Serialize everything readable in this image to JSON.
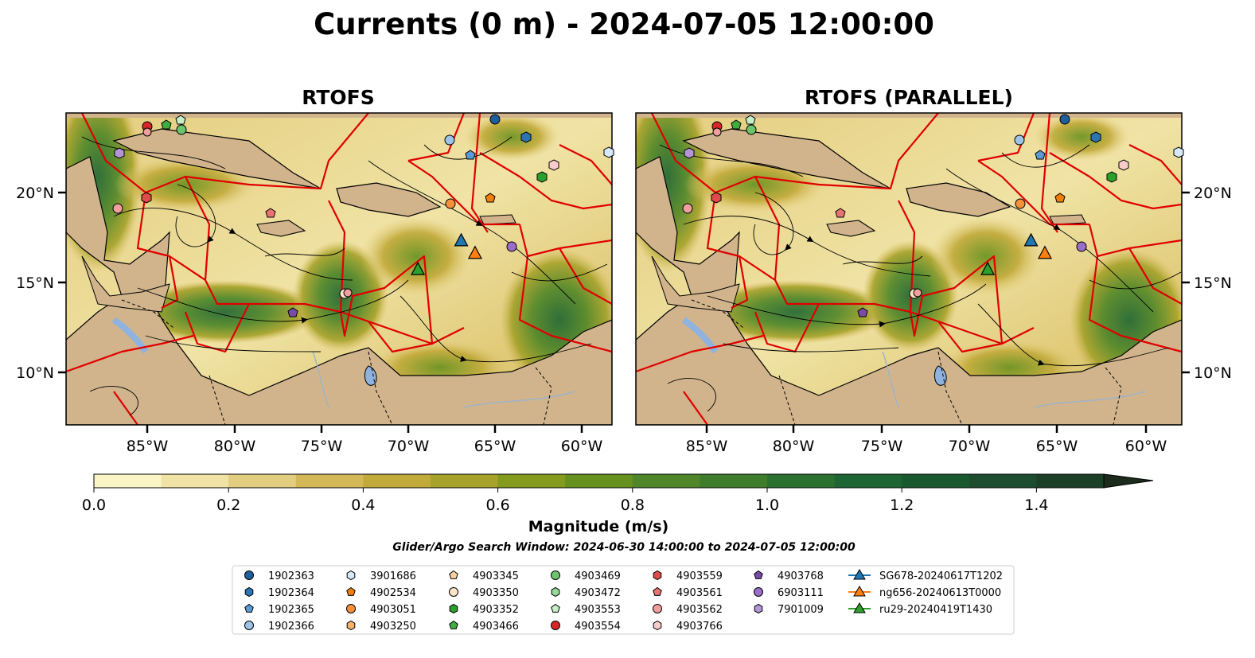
{
  "figure": {
    "title": "Currents (0 m) - 2024-07-05 12:00:00",
    "search_window": "Glider/Argo Search Window: 2024-06-30 14:00:00 to 2024-07-05 12:00:00"
  },
  "chart_data": [
    {
      "type": "heatmap",
      "title": "RTOFS",
      "variable": "surface current magnitude with streamlines",
      "xlim": [
        -89.5,
        -58
      ],
      "ylim": [
        7,
        24.3
      ],
      "xticks": [
        "85°W",
        "80°W",
        "75°W",
        "70°W",
        "65°W",
        "60°W"
      ],
      "yticks": [
        "10°N",
        "15°N",
        "20°N"
      ],
      "ytick_side": "left",
      "glider_positions": [
        {
          "name": "SG678-20240617T1202",
          "lon": -66.7,
          "lat": 17.2
        },
        {
          "name": "ng656-20240613T0000",
          "lon": -65.9,
          "lat": 16.5
        },
        {
          "name": "ru29-20240419T1430",
          "lon": -69.2,
          "lat": 15.6
        }
      ]
    },
    {
      "type": "heatmap",
      "title": "RTOFS (PARALLEL)",
      "variable": "surface current magnitude with streamlines",
      "xlim": [
        -89.5,
        -58
      ],
      "ylim": [
        7,
        24.3
      ],
      "xticks": [
        "85°W",
        "80°W",
        "75°W",
        "70°W",
        "65°W",
        "60°W"
      ],
      "yticks": [
        "10°N",
        "15°N",
        "20°N"
      ],
      "ytick_side": "right",
      "glider_positions": [
        {
          "name": "SG678-20240617T1202",
          "lon": -66.7,
          "lat": 17.2
        },
        {
          "name": "ng656-20240613T0000",
          "lon": -65.9,
          "lat": 16.5
        },
        {
          "name": "ru29-20240419T1430",
          "lon": -69.2,
          "lat": 15.6
        }
      ]
    }
  ],
  "colorbar": {
    "label": "Magnitude (m/s)",
    "range": [
      0,
      1.5
    ],
    "extend": "max",
    "ticks": [
      "0.0",
      "0.2",
      "0.4",
      "0.6",
      "0.8",
      "1.0",
      "1.2",
      "1.4"
    ],
    "colors": [
      "#fbf5c6",
      "#f0e3a5",
      "#e3cd7e",
      "#d4b857",
      "#c2aa3a",
      "#a6a22a",
      "#849b1d",
      "#66911f",
      "#4f8627",
      "#3d7d2c",
      "#2a7130",
      "#1d6532",
      "#1a5930",
      "#1b4d2e",
      "#1c3f27"
    ]
  },
  "legend": {
    "floats": [
      {
        "id": "1902363",
        "marker": "circle",
        "color": "#1f5f9e"
      },
      {
        "id": "1902364",
        "marker": "hexagon",
        "color": "#2e74b5"
      },
      {
        "id": "1902365",
        "marker": "pentagon",
        "color": "#5b9bd5"
      },
      {
        "id": "1902366",
        "marker": "circle",
        "color": "#9dc3e6"
      },
      {
        "id": "3901686",
        "marker": "hexagon",
        "color": "#d6e9f8"
      },
      {
        "id": "4902534",
        "marker": "pentagon",
        "color": "#f07f0a"
      },
      {
        "id": "4903051",
        "marker": "circle",
        "color": "#f5913a"
      },
      {
        "id": "4903250",
        "marker": "hexagon",
        "color": "#f9b26c"
      },
      {
        "id": "4903345",
        "marker": "pentagon",
        "color": "#fbcf9a"
      },
      {
        "id": "4903350",
        "marker": "circle",
        "color": "#fde4c8"
      },
      {
        "id": "4903352",
        "marker": "hexagon",
        "color": "#2ca02c"
      },
      {
        "id": "4903466",
        "marker": "pentagon",
        "color": "#3fae3f"
      },
      {
        "id": "4903469",
        "marker": "circle",
        "color": "#6cc46c"
      },
      {
        "id": "4903472",
        "marker": "hexagon",
        "color": "#98d898"
      },
      {
        "id": "4903553",
        "marker": "pentagon",
        "color": "#c7efc7"
      },
      {
        "id": "4903554",
        "marker": "circle",
        "color": "#d62728"
      },
      {
        "id": "4903559",
        "marker": "hexagon",
        "color": "#df4a4a"
      },
      {
        "id": "4903561",
        "marker": "pentagon",
        "color": "#e87373"
      },
      {
        "id": "4903562",
        "marker": "circle",
        "color": "#f09e9e"
      },
      {
        "id": "4903766",
        "marker": "hexagon",
        "color": "#f9cccc"
      },
      {
        "id": "4903768",
        "marker": "pentagon",
        "color": "#7b4ba8"
      },
      {
        "id": "6903111",
        "marker": "circle",
        "color": "#9a6dc6"
      },
      {
        "id": "7901009",
        "marker": "hexagon",
        "color": "#b495d8"
      }
    ],
    "gliders": [
      {
        "id": "SG678-20240617T1202",
        "marker": "triangle",
        "color": "#1f77b4"
      },
      {
        "id": "ng656-20240613T0000",
        "marker": "triangle",
        "color": "#ff7f0e"
      },
      {
        "id": "ru29-20240419T1430",
        "marker": "triangle",
        "color": "#2ca02c"
      }
    ]
  }
}
